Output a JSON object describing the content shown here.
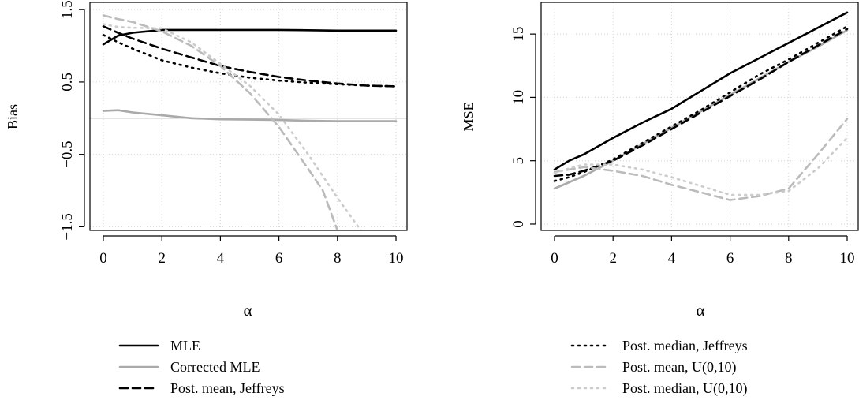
{
  "chart_data": [
    {
      "type": "line",
      "xlabel": "α",
      "ylabel": "Bias",
      "xlim": [
        0,
        10
      ],
      "ylim": [
        -1.55,
        1.6
      ],
      "xticks": [
        0,
        2,
        4,
        6,
        8,
        10
      ],
      "yticks": [
        -1.5,
        -0.5,
        0.5,
        1.5
      ],
      "grid": true,
      "reference_line": 0,
      "series": [
        {
          "name": "MLE",
          "color": "#000000",
          "dash": "solid",
          "x": [
            0,
            0.5,
            1,
            2,
            3,
            4,
            5,
            6,
            7,
            8,
            9,
            10
          ],
          "y": [
            1.02,
            1.14,
            1.18,
            1.22,
            1.22,
            1.22,
            1.22,
            1.22,
            1.215,
            1.21,
            1.21,
            1.21
          ]
        },
        {
          "name": "Corrected MLE",
          "color": "#aaaaaa",
          "dash": "solid",
          "x": [
            0,
            0.5,
            1,
            2,
            3,
            4,
            5,
            6,
            7,
            8,
            9,
            10
          ],
          "y": [
            0.1,
            0.11,
            0.08,
            0.04,
            0.0,
            -0.015,
            -0.02,
            -0.025,
            -0.035,
            -0.04,
            -0.04,
            -0.04
          ]
        },
        {
          "name": "Post. mean, Jeffreys",
          "color": "#000000",
          "dash": "dashed",
          "x": [
            0,
            0.5,
            1,
            2,
            3,
            4,
            5,
            6,
            7,
            8,
            9,
            10
          ],
          "y": [
            1.27,
            1.18,
            1.1,
            0.96,
            0.84,
            0.72,
            0.64,
            0.57,
            0.52,
            0.48,
            0.45,
            0.44
          ]
        },
        {
          "name": "Post. median, Jeffreys",
          "color": "#000000",
          "dash": "dotted",
          "x": [
            0,
            0.5,
            1,
            2,
            3,
            4,
            5,
            6,
            7,
            8,
            9,
            10
          ],
          "y": [
            1.15,
            1.05,
            0.96,
            0.8,
            0.7,
            0.62,
            0.56,
            0.52,
            0.49,
            0.47,
            0.45,
            0.44
          ]
        },
        {
          "name": "Post. mean, U(0,10)",
          "color": "#bbbbbb",
          "dash": "dashed",
          "x": [
            0,
            0.5,
            1,
            2,
            3,
            4,
            5,
            6,
            7,
            7.5,
            8
          ],
          "y": [
            1.42,
            1.37,
            1.33,
            1.2,
            1.0,
            0.72,
            0.35,
            -0.12,
            -0.7,
            -1.0,
            -1.55
          ]
        },
        {
          "name": "Post. median, U(0,10)",
          "color": "#cccccc",
          "dash": "dotted",
          "x": [
            0,
            0.5,
            1,
            2,
            3,
            4,
            5,
            6,
            7,
            8,
            8.8
          ],
          "y": [
            1.3,
            1.26,
            1.25,
            1.24,
            1.05,
            0.75,
            0.45,
            0.05,
            -0.5,
            -1.1,
            -1.55
          ]
        }
      ]
    },
    {
      "type": "line",
      "xlabel": "α",
      "ylabel": "MSE",
      "xlim": [
        0,
        10
      ],
      "ylim": [
        -0.5,
        17.5
      ],
      "xticks": [
        0,
        2,
        4,
        6,
        8,
        10
      ],
      "yticks": [
        0,
        5,
        10,
        15
      ],
      "grid": true,
      "series": [
        {
          "name": "MLE",
          "color": "#000000",
          "dash": "solid",
          "x": [
            0,
            0.5,
            1,
            2,
            3,
            4,
            5,
            6,
            7,
            8,
            9,
            10
          ],
          "y": [
            4.3,
            5.0,
            5.5,
            6.8,
            8.0,
            9.1,
            10.5,
            11.9,
            13.1,
            14.3,
            15.5,
            16.7
          ]
        },
        {
          "name": "Corrected MLE",
          "color": "#aaaaaa",
          "dash": "solid",
          "x": [
            0,
            0.5,
            1,
            2,
            3,
            4,
            5,
            6,
            7,
            8,
            9,
            10
          ],
          "y": [
            2.8,
            3.3,
            3.8,
            5.0,
            6.3,
            7.6,
            8.9,
            10.2,
            11.5,
            12.8,
            14.0,
            15.3
          ]
        },
        {
          "name": "Post. mean, Jeffreys",
          "color": "#000000",
          "dash": "dashed",
          "x": [
            0,
            0.5,
            1,
            2,
            3,
            4,
            5,
            6,
            7,
            8,
            9,
            10
          ],
          "y": [
            3.8,
            3.9,
            4.2,
            5.0,
            6.2,
            7.5,
            8.8,
            10.1,
            11.4,
            12.8,
            14.1,
            15.4
          ]
        },
        {
          "name": "Post. median, Jeffreys",
          "color": "#000000",
          "dash": "dotted",
          "x": [
            0,
            0.5,
            1,
            2,
            3,
            4,
            5,
            6,
            7,
            8,
            9,
            10
          ],
          "y": [
            3.4,
            3.7,
            4.1,
            5.1,
            6.4,
            7.7,
            9.0,
            10.4,
            11.8,
            13.0,
            14.3,
            15.6
          ]
        },
        {
          "name": "Post. mean, U(0,10)",
          "color": "#bbbbbb",
          "dash": "dashed",
          "x": [
            0,
            0.5,
            1,
            2,
            3,
            4,
            5,
            6,
            7,
            8,
            9,
            10
          ],
          "y": [
            4.1,
            4.3,
            4.5,
            4.2,
            3.8,
            3.1,
            2.5,
            1.9,
            2.2,
            2.8,
            5.5,
            8.3
          ]
        },
        {
          "name": "Post. median, U(0,10)",
          "color": "#cccccc",
          "dash": "dotted",
          "x": [
            0,
            0.5,
            1,
            2,
            3,
            4,
            5,
            6,
            7,
            8,
            9,
            10
          ],
          "y": [
            4.0,
            4.4,
            4.7,
            4.7,
            4.3,
            3.7,
            3.0,
            2.3,
            2.3,
            2.6,
            4.4,
            6.8
          ]
        }
      ]
    }
  ],
  "legend": [
    {
      "label": "MLE",
      "color": "#000000",
      "dash": "solid"
    },
    {
      "label": "Corrected MLE",
      "color": "#aaaaaa",
      "dash": "solid"
    },
    {
      "label": "Post. mean, Jeffreys",
      "color": "#000000",
      "dash": "dashed"
    },
    {
      "label": "Post. median, Jeffreys",
      "color": "#000000",
      "dash": "dotted"
    },
    {
      "label": "Post. mean, U(0,10)",
      "color": "#bbbbbb",
      "dash": "dashed"
    },
    {
      "label": "Post. median, U(0,10)",
      "color": "#cccccc",
      "dash": "dotted"
    }
  ]
}
